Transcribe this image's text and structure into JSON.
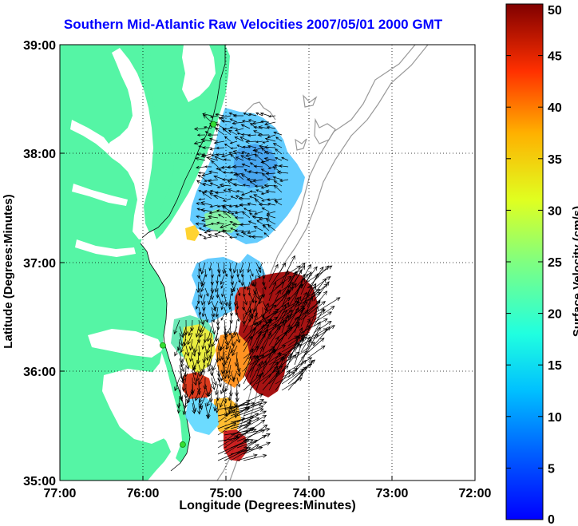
{
  "title": "Southern Mid-Atlantic Raw Velocities 2007/05/01 2000 GMT",
  "xlabel": "Longitude (Degrees:Minutes)",
  "ylabel": "Latitude (Degrees:Minutes)",
  "colorbar_label": "Surface Velocity (cm/s)",
  "x_ticks": [
    "77:00",
    "76:00",
    "75:00",
    "74:00",
    "73:00",
    "72:00"
  ],
  "y_ticks": [
    "35:00",
    "36:00",
    "37:00",
    "38:00",
    "39:00"
  ],
  "colorbar_ticks": [
    "0",
    "5",
    "10",
    "15",
    "20",
    "25",
    "30",
    "35",
    "40",
    "45",
    "50"
  ],
  "map": {
    "lon_range": [
      -77,
      -72
    ],
    "lat_range": [
      35,
      39
    ],
    "grid": "dotted",
    "land_color": "#55f5a5",
    "water_color": "#ffffff",
    "bathymetry_color": "#999999",
    "vector_color": "#000000",
    "station_color": "#33dd33",
    "colormap": "jet",
    "speed_range_cm_s": [
      0,
      50
    ],
    "stations": [
      {
        "lon": -75.15,
        "lat": 38.27
      },
      {
        "lon": -75.76,
        "lat": 36.24
      },
      {
        "lon": -75.52,
        "lat": 35.33
      }
    ]
  }
}
